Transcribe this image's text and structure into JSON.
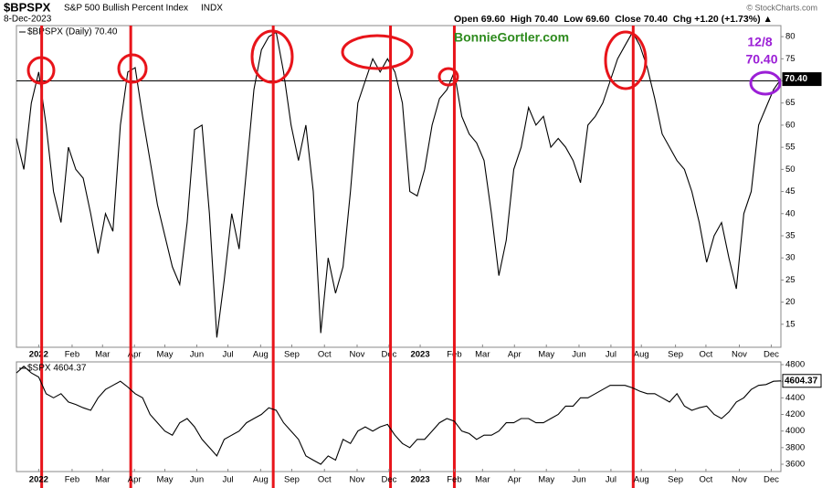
{
  "header": {
    "symbol": "$BPSPX",
    "name": "S&P 500 Bullish Percent Index",
    "exchange": "INDX",
    "date": "8-Dec-2023",
    "quote": "Open 69.60  High 70.40  Low 69.60  Close 70.40  Chg +1.20 (+1.73%) ▲",
    "copyright": "© StockCharts.com"
  },
  "annotations": {
    "site": "BonnieGortler.com",
    "date": "12/8",
    "value": "70.40"
  },
  "chart_data": [
    {
      "type": "line",
      "legend": "$BPSPX (Daily) 70.40",
      "last_label": "70.40",
      "color": "#000000",
      "grid": false,
      "reference_line": 70,
      "highlight_lines": [
        3.4,
        15.4,
        34.6,
        50.4,
        59.0,
        83.1
      ],
      "highlight_color": "#e8141a",
      "xlim": [
        0,
        103
      ],
      "ylim": [
        9.8,
        82.5
      ],
      "yticks": [
        15,
        20,
        25,
        30,
        35,
        40,
        45,
        50,
        55,
        60,
        65,
        70,
        75,
        80
      ],
      "xticks": [
        {
          "value": 3.0,
          "label": "2022"
        },
        {
          "value": 7.5,
          "label": "Feb"
        },
        {
          "value": 11.6,
          "label": "Mar"
        },
        {
          "value": 15.9,
          "label": "Apr"
        },
        {
          "value": 20.0,
          "label": "May"
        },
        {
          "value": 24.3,
          "label": "Jun"
        },
        {
          "value": 28.5,
          "label": "Jul"
        },
        {
          "value": 32.9,
          "label": "Aug"
        },
        {
          "value": 37.1,
          "label": "Sep"
        },
        {
          "value": 41.5,
          "label": "Oct"
        },
        {
          "value": 45.9,
          "label": "Nov"
        },
        {
          "value": 50.2,
          "label": "Dec"
        },
        {
          "value": 54.4,
          "label": "2023"
        },
        {
          "value": 59.0,
          "label": "Feb"
        },
        {
          "value": 62.8,
          "label": "Mar"
        },
        {
          "value": 67.1,
          "label": "Apr"
        },
        {
          "value": 71.4,
          "label": "May"
        },
        {
          "value": 75.8,
          "label": "Jun"
        },
        {
          "value": 80.1,
          "label": "Jul"
        },
        {
          "value": 84.2,
          "label": "Aug"
        },
        {
          "value": 88.8,
          "label": "Sep"
        },
        {
          "value": 92.9,
          "label": "Oct"
        },
        {
          "value": 97.4,
          "label": "Nov"
        },
        {
          "value": 101.7,
          "label": "Dec"
        }
      ],
      "series": [
        {
          "name": "$BPSPX",
          "color": "#000000",
          "values": [
            57,
            50,
            65,
            72,
            60,
            45,
            38,
            55,
            50,
            48,
            40,
            31,
            40,
            36,
            60,
            72,
            73,
            62,
            52,
            42,
            35,
            28,
            24,
            38,
            59,
            60,
            40,
            12,
            25,
            40,
            32,
            50,
            68,
            77,
            80,
            81,
            72,
            60,
            52,
            60,
            45,
            13,
            30,
            22,
            28,
            45,
            65,
            70,
            75,
            72,
            75,
            72,
            65,
            45,
            44,
            50,
            60,
            66,
            68,
            72,
            62,
            58,
            56,
            52,
            40,
            26,
            34,
            50,
            55,
            64,
            60,
            62,
            55,
            57,
            55,
            52,
            47,
            60,
            62,
            65,
            70,
            75,
            78,
            81,
            78,
            73,
            66,
            58,
            55,
            52,
            50,
            45,
            38,
            29,
            35,
            38,
            30,
            23,
            40,
            45,
            60,
            64,
            68,
            70.4
          ]
        }
      ]
    },
    {
      "type": "line",
      "legend": "$SPX 4604.37",
      "last_label": "4604.37",
      "color": "#000000",
      "grid": false,
      "xlim": [
        0,
        103
      ],
      "ylim": [
        3512,
        4833
      ],
      "yticks": [
        3600,
        3800,
        4000,
        4200,
        4400,
        4600,
        4800
      ],
      "xticks": [
        {
          "value": 3.0,
          "label": "2022"
        },
        {
          "value": 7.5,
          "label": "Feb"
        },
        {
          "value": 11.6,
          "label": "Mar"
        },
        {
          "value": 15.9,
          "label": "Apr"
        },
        {
          "value": 20.0,
          "label": "May"
        },
        {
          "value": 24.3,
          "label": "Jun"
        },
        {
          "value": 28.5,
          "label": "Jul"
        },
        {
          "value": 32.9,
          "label": "Aug"
        },
        {
          "value": 37.1,
          "label": "Sep"
        },
        {
          "value": 41.5,
          "label": "Oct"
        },
        {
          "value": 45.9,
          "label": "Nov"
        },
        {
          "value": 50.2,
          "label": "Dec"
        },
        {
          "value": 54.4,
          "label": "2023"
        },
        {
          "value": 59.0,
          "label": "Feb"
        },
        {
          "value": 62.8,
          "label": "Mar"
        },
        {
          "value": 67.1,
          "label": "Apr"
        },
        {
          "value": 71.4,
          "label": "May"
        },
        {
          "value": 75.8,
          "label": "Jun"
        },
        {
          "value": 80.1,
          "label": "Jul"
        },
        {
          "value": 84.2,
          "label": "Aug"
        },
        {
          "value": 88.8,
          "label": "Sep"
        },
        {
          "value": 92.9,
          "label": "Oct"
        },
        {
          "value": 97.4,
          "label": "Nov"
        },
        {
          "value": 101.7,
          "label": "Dec"
        }
      ],
      "series": [
        {
          "name": "$SPX",
          "color": "#000000",
          "values": [
            4700,
            4780,
            4700,
            4650,
            4450,
            4400,
            4450,
            4350,
            4320,
            4280,
            4250,
            4400,
            4500,
            4550,
            4600,
            4530,
            4450,
            4400,
            4200,
            4100,
            4000,
            3950,
            4100,
            4150,
            4050,
            3900,
            3800,
            3700,
            3900,
            3950,
            4000,
            4100,
            4150,
            4200,
            4280,
            4250,
            4100,
            4000,
            3900,
            3700,
            3650,
            3600,
            3700,
            3650,
            3900,
            3850,
            4000,
            4050,
            4000,
            4050,
            4080,
            3950,
            3850,
            3800,
            3900,
            3900,
            4000,
            4100,
            4150,
            4120,
            4000,
            3970,
            3900,
            3950,
            3950,
            4000,
            4100,
            4100,
            4150,
            4150,
            4100,
            4100,
            4150,
            4200,
            4300,
            4300,
            4400,
            4400,
            4450,
            4500,
            4550,
            4550,
            4550,
            4520,
            4480,
            4450,
            4450,
            4400,
            4350,
            4450,
            4300,
            4250,
            4280,
            4300,
            4200,
            4150,
            4230,
            4350,
            4400,
            4500,
            4550,
            4560,
            4600,
            4604.37
          ]
        }
      ]
    }
  ]
}
